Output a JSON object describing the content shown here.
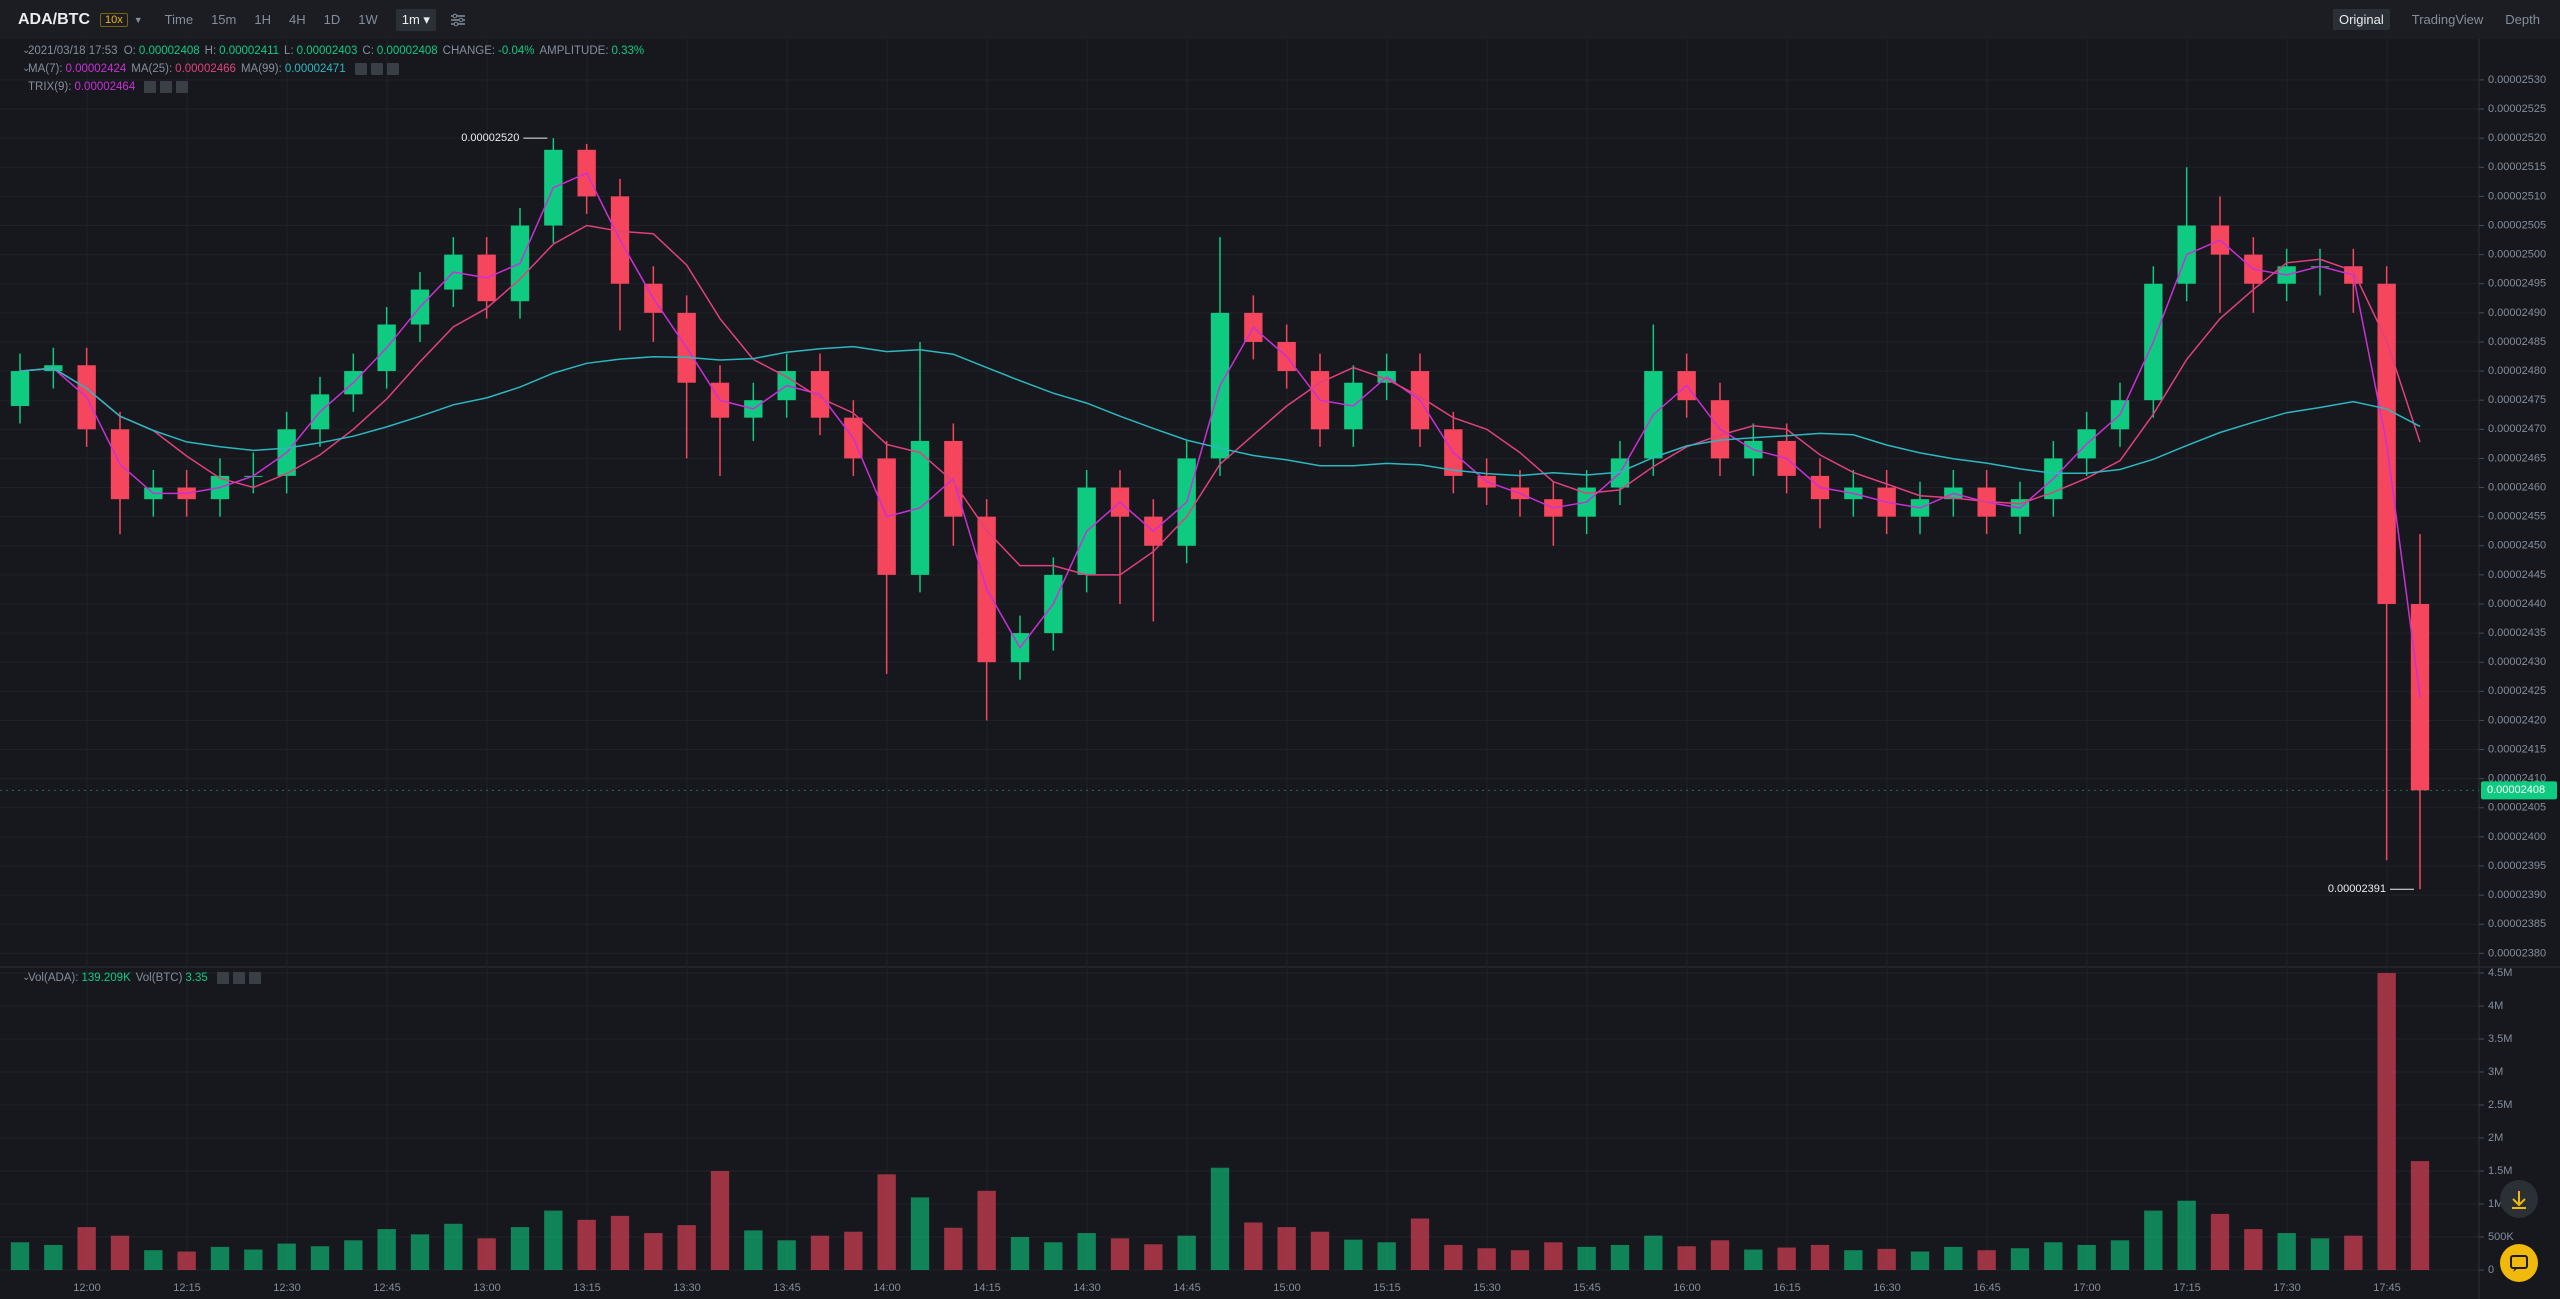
{
  "toolbar": {
    "symbol": "ADA/BTC",
    "leverage": "10x",
    "intervals": [
      "Time",
      "15m",
      "1H",
      "4H",
      "1D",
      "1W"
    ],
    "active_interval": "1m",
    "views": [
      "Original",
      "TradingView",
      "Depth"
    ]
  },
  "chart_data": {
    "type": "candlestick",
    "ohlc_legend": {
      "date": "2021/03/18 17:53",
      "items": [
        {
          "label": "O:",
          "value": "0.00002408"
        },
        {
          "label": "H:",
          "value": "0.00002411"
        },
        {
          "label": "L:",
          "value": "0.00002403"
        },
        {
          "label": "C:",
          "value": "0.00002408"
        },
        {
          "label": "CHANGE:",
          "value": "-0.04%"
        },
        {
          "label": "AMPLITUDE:",
          "value": "0.33%"
        }
      ]
    },
    "indicators": [
      {
        "name": "MA(7):",
        "value": "0.00002424",
        "color": "#c930d6"
      },
      {
        "name": "MA(25):",
        "value": "0.00002466",
        "color": "#e0407f"
      },
      {
        "name": "MA(99):",
        "value": "0.00002471",
        "color": "#2bb8c0"
      }
    ],
    "trix": {
      "name": "TRIX(9):",
      "value": "0.00002464",
      "color": "#c930d6"
    },
    "up_color": "#0ecb81",
    "down_color": "#f6465d",
    "candles": [
      [
        2.474e-05,
        2.483e-05,
        2.471e-05,
        2.48e-05
      ],
      [
        2.48e-05,
        2.484e-05,
        2.477e-05,
        2.481e-05
      ],
      [
        2.481e-05,
        2.484e-05,
        2.467e-05,
        2.47e-05
      ],
      [
        2.47e-05,
        2.473e-05,
        2.452e-05,
        2.458e-05
      ],
      [
        2.458e-05,
        2.463e-05,
        2.455e-05,
        2.46e-05
      ],
      [
        2.46e-05,
        2.463e-05,
        2.455e-05,
        2.458e-05
      ],
      [
        2.458e-05,
        2.465e-05,
        2.455e-05,
        2.462e-05
      ],
      [
        2.462e-05,
        2.466e-05,
        2.459e-05,
        2.462e-05
      ],
      [
        2.462e-05,
        2.473e-05,
        2.459e-05,
        2.47e-05
      ],
      [
        2.47e-05,
        2.479e-05,
        2.467e-05,
        2.476e-05
      ],
      [
        2.476e-05,
        2.483e-05,
        2.473e-05,
        2.48e-05
      ],
      [
        2.48e-05,
        2.491e-05,
        2.477e-05,
        2.488e-05
      ],
      [
        2.488e-05,
        2.497e-05,
        2.485e-05,
        2.494e-05
      ],
      [
        2.494e-05,
        2.503e-05,
        2.491e-05,
        2.5e-05
      ],
      [
        2.5e-05,
        2.503e-05,
        2.489e-05,
        2.492e-05
      ],
      [
        2.492e-05,
        2.508e-05,
        2.489e-05,
        2.505e-05
      ],
      [
        2.505e-05,
        2.52e-05,
        2.502e-05,
        2.518e-05
      ],
      [
        2.518e-05,
        2.519e-05,
        2.507e-05,
        2.51e-05
      ],
      [
        2.51e-05,
        2.513e-05,
        2.487e-05,
        2.495e-05
      ],
      [
        2.495e-05,
        2.498e-05,
        2.485e-05,
        2.49e-05
      ],
      [
        2.49e-05,
        2.493e-05,
        2.465e-05,
        2.478e-05
      ],
      [
        2.478e-05,
        2.481e-05,
        2.462e-05,
        2.472e-05
      ],
      [
        2.472e-05,
        2.478e-05,
        2.468e-05,
        2.475e-05
      ],
      [
        2.475e-05,
        2.483e-05,
        2.472e-05,
        2.48e-05
      ],
      [
        2.48e-05,
        2.483e-05,
        2.469e-05,
        2.472e-05
      ],
      [
        2.472e-05,
        2.475e-05,
        2.462e-05,
        2.465e-05
      ],
      [
        2.465e-05,
        2.468e-05,
        2.428e-05,
        2.445e-05
      ],
      [
        2.445e-05,
        2.485e-05,
        2.442e-05,
        2.468e-05
      ],
      [
        2.468e-05,
        2.471e-05,
        2.45e-05,
        2.455e-05
      ],
      [
        2.455e-05,
        2.458e-05,
        2.42e-05,
        2.43e-05
      ],
      [
        2.43e-05,
        2.438e-05,
        2.427e-05,
        2.435e-05
      ],
      [
        2.435e-05,
        2.448e-05,
        2.432e-05,
        2.445e-05
      ],
      [
        2.445e-05,
        2.463e-05,
        2.442e-05,
        2.46e-05
      ],
      [
        2.46e-05,
        2.463e-05,
        2.44e-05,
        2.455e-05
      ],
      [
        2.455e-05,
        2.458e-05,
        2.437e-05,
        2.45e-05
      ],
      [
        2.45e-05,
        2.468e-05,
        2.447e-05,
        2.465e-05
      ],
      [
        2.465e-05,
        2.503e-05,
        2.462e-05,
        2.49e-05
      ],
      [
        2.49e-05,
        2.493e-05,
        2.482e-05,
        2.485e-05
      ],
      [
        2.485e-05,
        2.488e-05,
        2.477e-05,
        2.48e-05
      ],
      [
        2.48e-05,
        2.483e-05,
        2.467e-05,
        2.47e-05
      ],
      [
        2.47e-05,
        2.481e-05,
        2.467e-05,
        2.478e-05
      ],
      [
        2.478e-05,
        2.483e-05,
        2.475e-05,
        2.48e-05
      ],
      [
        2.48e-05,
        2.483e-05,
        2.467e-05,
        2.47e-05
      ],
      [
        2.47e-05,
        2.473e-05,
        2.459e-05,
        2.462e-05
      ],
      [
        2.462e-05,
        2.465e-05,
        2.457e-05,
        2.46e-05
      ],
      [
        2.46e-05,
        2.463e-05,
        2.455e-05,
        2.458e-05
      ],
      [
        2.458e-05,
        2.461e-05,
        2.45e-05,
        2.455e-05
      ],
      [
        2.455e-05,
        2.463e-05,
        2.452e-05,
        2.46e-05
      ],
      [
        2.46e-05,
        2.468e-05,
        2.457e-05,
        2.465e-05
      ],
      [
        2.465e-05,
        2.488e-05,
        2.462e-05,
        2.48e-05
      ],
      [
        2.48e-05,
        2.483e-05,
        2.472e-05,
        2.475e-05
      ],
      [
        2.475e-05,
        2.478e-05,
        2.462e-05,
        2.465e-05
      ],
      [
        2.465e-05,
        2.471e-05,
        2.462e-05,
        2.468e-05
      ],
      [
        2.468e-05,
        2.471e-05,
        2.459e-05,
        2.462e-05
      ],
      [
        2.462e-05,
        2.465e-05,
        2.453e-05,
        2.458e-05
      ],
      [
        2.458e-05,
        2.463e-05,
        2.455e-05,
        2.46e-05
      ],
      [
        2.46e-05,
        2.463e-05,
        2.452e-05,
        2.455e-05
      ],
      [
        2.455e-05,
        2.461e-05,
        2.452e-05,
        2.458e-05
      ],
      [
        2.458e-05,
        2.463e-05,
        2.455e-05,
        2.46e-05
      ],
      [
        2.46e-05,
        2.463e-05,
        2.452e-05,
        2.455e-05
      ],
      [
        2.455e-05,
        2.461e-05,
        2.452e-05,
        2.458e-05
      ],
      [
        2.458e-05,
        2.468e-05,
        2.455e-05,
        2.465e-05
      ],
      [
        2.465e-05,
        2.473e-05,
        2.462e-05,
        2.47e-05
      ],
      [
        2.47e-05,
        2.478e-05,
        2.467e-05,
        2.475e-05
      ],
      [
        2.475e-05,
        2.498e-05,
        2.472e-05,
        2.495e-05
      ],
      [
        2.495e-05,
        2.515e-05,
        2.492e-05,
        2.505e-05
      ],
      [
        2.505e-05,
        2.51e-05,
        2.49e-05,
        2.5e-05
      ],
      [
        2.5e-05,
        2.503e-05,
        2.49e-05,
        2.495e-05
      ],
      [
        2.495e-05,
        2.501e-05,
        2.492e-05,
        2.498e-05
      ],
      [
        2.498e-05,
        2.501e-05,
        2.493e-05,
        2.498e-05
      ],
      [
        2.498e-05,
        2.501e-05,
        2.49e-05,
        2.495e-05
      ],
      [
        2.495e-05,
        2.498e-05,
        2.396e-05,
        2.44e-05
      ],
      [
        2.44e-05,
        2.452e-05,
        2.391e-05,
        2.408e-05
      ]
    ],
    "ylim": [
      2.378e-05,
      2.536e-05
    ],
    "yticks": [
      {
        "value": 2.38e-05,
        "label": "0.00002380"
      },
      2.385e-05,
      {
        "value": 2.39e-05,
        "label": "0.00002390"
      },
      2.395e-05,
      {
        "value": 2.4e-05,
        "label": "0.00002400"
      },
      2.405e-05,
      {
        "value": 2.41e-05,
        "label": "0.00002410"
      },
      2.415e-05,
      {
        "value": 2.42e-05,
        "label": "0.00002420"
      },
      2.425e-05,
      {
        "value": 2.43e-05,
        "label": "0.00002430"
      },
      2.435e-05,
      {
        "value": 2.44e-05,
        "label": "0.00002440"
      },
      2.445e-05,
      {
        "value": 2.45e-05,
        "label": "0.00002450"
      },
      2.455e-05,
      {
        "value": 2.46e-05,
        "label": "0.00002460"
      },
      2.465e-05,
      {
        "value": 2.47e-05,
        "label": "0.00002470"
      },
      2.475e-05,
      {
        "value": 2.48e-05,
        "label": "0.00002480"
      },
      2.485e-05,
      {
        "value": 2.49e-05,
        "label": "0.00002490"
      },
      2.495e-05,
      {
        "value": 2.5e-05,
        "label": "0.00002500"
      },
      2.505e-05,
      {
        "value": 2.51e-05,
        "label": "0.00002510"
      },
      2.515e-05,
      {
        "value": 2.52e-05,
        "label": "0.00002520"
      },
      2.525e-05,
      {
        "value": 2.53e-05,
        "label": "0.00002530"
      }
    ],
    "x_labels": [
      "12:00",
      "12:15",
      "12:30",
      "12:45",
      "13:00",
      "13:15",
      "13:30",
      "13:45",
      "14:00",
      "14:15",
      "14:30",
      "14:45",
      "15:00",
      "15:15",
      "15:30",
      "15:45",
      "16:00",
      "16:15",
      "16:30",
      "16:45",
      "17:00",
      "17:15",
      "17:30",
      "17:45"
    ],
    "last_price": 2.408e-05,
    "high_marker": {
      "value": 2.52e-05,
      "label": "0.00002520"
    },
    "low_marker": 2.391e-05,
    "volume": {
      "legend": [
        {
          "label": "Vol(ADA):",
          "value": "139.209K"
        },
        {
          "label": "Vol(BTC)",
          "value": "3.35"
        }
      ],
      "values": [
        420000,
        380000,
        650000,
        520000,
        300000,
        280000,
        350000,
        310000,
        400000,
        360000,
        450000,
        620000,
        540000,
        700000,
        480000,
        650000,
        900000,
        760000,
        820000,
        560000,
        680000,
        1500000,
        600000,
        450000,
        520000,
        580000,
        1450000,
        1100000,
        640000,
        1200000,
        500000,
        420000,
        560000,
        480000,
        390000,
        520000,
        1550000,
        720000,
        650000,
        580000,
        460000,
        420000,
        780000,
        380000,
        330000,
        300000,
        420000,
        350000,
        380000,
        520000,
        360000,
        450000,
        310000,
        340000,
        380000,
        300000,
        320000,
        280000,
        350000,
        300000,
        330000,
        420000,
        380000,
        450000,
        900000,
        1050000,
        850000,
        620000,
        560000,
        480000,
        520000,
        4500000,
        1650000
      ],
      "ylim": [
        0,
        4500000
      ],
      "yticks": [
        0,
        {
          "value": 500000,
          "label": "500K"
        },
        {
          "value": 1000000,
          "label": "1M"
        },
        {
          "value": 1500000,
          "label": "1.5M"
        },
        {
          "value": 2000000,
          "label": "2M"
        },
        {
          "value": 2500000,
          "label": "2.5M"
        },
        {
          "value": 3000000,
          "label": "3M"
        },
        {
          "value": 3500000,
          "label": "3.5M"
        },
        {
          "value": 4000000,
          "label": "4M"
        },
        {
          "value": 4500000,
          "label": "4.5M"
        }
      ]
    }
  }
}
